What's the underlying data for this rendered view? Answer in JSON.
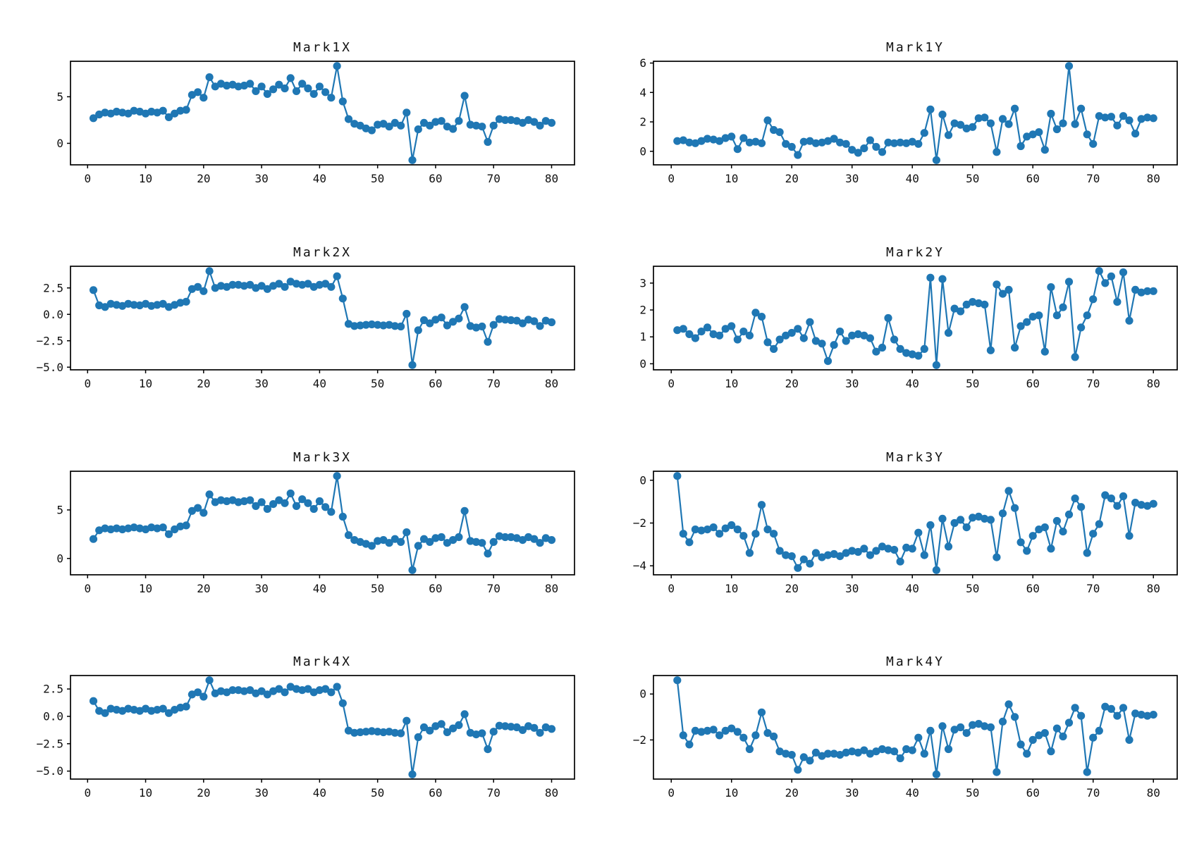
{
  "figure": {
    "background": "#ffffff"
  },
  "style": {
    "line_color": "#1f77b4",
    "marker_color": "#1f77b4",
    "axis_color": "#000000",
    "tick_label_color": "#111111"
  },
  "chart_data": [
    {
      "type": "line",
      "title": "Mark1X",
      "marker": "o",
      "grid": false,
      "legend": null,
      "x_start": 1,
      "x_step": 1,
      "xlim": [
        -2.95,
        83.95
      ],
      "ylim": [
        -2.31,
        8.81
      ],
      "xticks": [
        0,
        10,
        20,
        30,
        40,
        50,
        60,
        70,
        80
      ],
      "xtick_labels": [
        "0",
        "10",
        "20",
        "30",
        "40",
        "50",
        "60",
        "70",
        "80"
      ],
      "yticks": [
        {
          "v": 0,
          "label": "0"
        },
        {
          "v": 5,
          "label": "5"
        }
      ],
      "values": [
        2.7,
        3.1,
        3.3,
        3.2,
        3.4,
        3.3,
        3.2,
        3.5,
        3.4,
        3.2,
        3.4,
        3.3,
        3.5,
        2.8,
        3.2,
        3.5,
        3.6,
        5.2,
        5.5,
        4.9,
        7.1,
        6.1,
        6.4,
        6.2,
        6.3,
        6.1,
        6.2,
        6.4,
        5.6,
        6.1,
        5.3,
        5.8,
        6.3,
        5.9,
        7.0,
        5.6,
        6.4,
        5.9,
        5.3,
        6.1,
        5.5,
        4.9,
        8.3,
        4.5,
        2.6,
        2.1,
        1.9,
        1.6,
        1.4,
        2.0,
        2.1,
        1.8,
        2.2,
        1.9,
        3.3,
        -1.8,
        1.5,
        2.2,
        1.9,
        2.3,
        2.4,
        1.8,
        1.55,
        2.4,
        5.1,
        2.0,
        1.9,
        1.8,
        0.15,
        1.9,
        2.6,
        2.5,
        2.5,
        2.4,
        2.2,
        2.5,
        2.3,
        1.9,
        2.4,
        2.2
      ]
    },
    {
      "type": "line",
      "title": "Mark1Y",
      "marker": "o",
      "grid": false,
      "legend": null,
      "x_start": 1,
      "x_step": 1,
      "xlim": [
        -2.95,
        83.95
      ],
      "ylim": [
        -0.92,
        6.12
      ],
      "xticks": [
        0,
        10,
        20,
        30,
        40,
        50,
        60,
        70,
        80
      ],
      "xtick_labels": [
        "0",
        "10",
        "20",
        "30",
        "40",
        "50",
        "60",
        "70",
        "80"
      ],
      "yticks": [
        {
          "v": 0,
          "label": "0"
        },
        {
          "v": 2,
          "label": "2"
        },
        {
          "v": 4,
          "label": "4"
        },
        {
          "v": 6,
          "label": "6"
        }
      ],
      "values": [
        0.7,
        0.75,
        0.6,
        0.55,
        0.7,
        0.85,
        0.8,
        0.7,
        0.9,
        1.0,
        0.15,
        0.9,
        0.6,
        0.65,
        0.55,
        2.1,
        1.45,
        1.3,
        0.5,
        0.3,
        -0.25,
        0.65,
        0.7,
        0.55,
        0.6,
        0.7,
        0.85,
        0.6,
        0.5,
        0.1,
        -0.1,
        0.2,
        0.75,
        0.3,
        -0.05,
        0.6,
        0.55,
        0.6,
        0.55,
        0.65,
        0.5,
        1.25,
        2.85,
        -0.6,
        2.5,
        1.1,
        1.9,
        1.8,
        1.55,
        1.65,
        2.25,
        2.3,
        1.9,
        -0.05,
        2.2,
        1.85,
        2.9,
        0.35,
        1.0,
        1.15,
        1.3,
        0.1,
        2.55,
        1.5,
        1.9,
        5.8,
        1.85,
        2.9,
        1.15,
        0.5,
        2.4,
        2.3,
        2.35,
        1.75,
        2.4,
        2.1,
        1.2,
        2.2,
        2.3,
        2.25
      ]
    },
    {
      "type": "line",
      "title": "Mark2X",
      "marker": "o",
      "grid": false,
      "legend": null,
      "x_start": 1,
      "x_step": 1,
      "xlim": [
        -2.95,
        83.95
      ],
      "ylim": [
        -5.25,
        4.55
      ],
      "xticks": [
        0,
        10,
        20,
        30,
        40,
        50,
        60,
        70,
        80
      ],
      "xtick_labels": [
        "0",
        "10",
        "20",
        "30",
        "40",
        "50",
        "60",
        "70",
        "80"
      ],
      "yticks": [
        {
          "v": -5,
          "label": "−5.0"
        },
        {
          "v": -2.5,
          "label": "−2.5"
        },
        {
          "v": 0,
          "label": "0.0"
        },
        {
          "v": 2.5,
          "label": "2.5"
        }
      ],
      "values": [
        2.3,
        0.85,
        0.7,
        1.0,
        0.9,
        0.8,
        1.0,
        0.9,
        0.85,
        1.0,
        0.8,
        0.9,
        1.0,
        0.7,
        0.9,
        1.1,
        1.2,
        2.4,
        2.6,
        2.2,
        4.1,
        2.5,
        2.7,
        2.6,
        2.8,
        2.8,
        2.7,
        2.8,
        2.5,
        2.7,
        2.4,
        2.7,
        2.9,
        2.6,
        3.1,
        2.9,
        2.8,
        2.9,
        2.6,
        2.8,
        2.9,
        2.6,
        3.6,
        1.5,
        -0.9,
        -1.1,
        -1.05,
        -1.0,
        -0.95,
        -1.0,
        -1.05,
        -1.0,
        -1.1,
        -1.15,
        0.05,
        -4.8,
        -1.5,
        -0.55,
        -0.85,
        -0.5,
        -0.3,
        -1.05,
        -0.7,
        -0.4,
        0.7,
        -1.1,
        -1.25,
        -1.15,
        -2.6,
        -1.0,
        -0.45,
        -0.5,
        -0.55,
        -0.6,
        -0.85,
        -0.5,
        -0.65,
        -1.1,
        -0.6,
        -0.75
      ]
    },
    {
      "type": "line",
      "title": "Mark2Y",
      "marker": "o",
      "grid": false,
      "legend": null,
      "x_start": 1,
      "x_step": 1,
      "xlim": [
        -2.95,
        83.95
      ],
      "ylim": [
        -0.225,
        3.625
      ],
      "xticks": [
        0,
        10,
        20,
        30,
        40,
        50,
        60,
        70,
        80
      ],
      "xtick_labels": [
        "0",
        "10",
        "20",
        "30",
        "40",
        "50",
        "60",
        "70",
        "80"
      ],
      "yticks": [
        {
          "v": 0,
          "label": "0"
        },
        {
          "v": 1,
          "label": "1"
        },
        {
          "v": 2,
          "label": "2"
        },
        {
          "v": 3,
          "label": "3"
        }
      ],
      "values": [
        1.25,
        1.3,
        1.1,
        0.95,
        1.2,
        1.35,
        1.1,
        1.05,
        1.3,
        1.4,
        0.9,
        1.2,
        1.05,
        1.9,
        1.75,
        0.8,
        0.55,
        0.9,
        1.05,
        1.15,
        1.3,
        0.95,
        1.55,
        0.85,
        0.75,
        0.1,
        0.7,
        1.2,
        0.85,
        1.05,
        1.1,
        1.05,
        0.95,
        0.45,
        0.6,
        1.7,
        0.9,
        0.55,
        0.4,
        0.35,
        0.3,
        0.55,
        3.2,
        -0.05,
        3.15,
        1.15,
        2.05,
        1.95,
        2.2,
        2.3,
        2.25,
        2.2,
        0.5,
        2.95,
        2.6,
        2.75,
        0.6,
        1.4,
        1.55,
        1.75,
        1.8,
        0.45,
        2.85,
        1.8,
        2.1,
        3.05,
        0.25,
        1.35,
        1.8,
        2.4,
        3.45,
        3.0,
        3.25,
        2.3,
        3.4,
        1.6,
        2.75,
        2.65,
        2.7,
        2.7
      ]
    },
    {
      "type": "line",
      "title": "Mark3X",
      "marker": "o",
      "grid": false,
      "legend": null,
      "x_start": 1,
      "x_step": 1,
      "xlim": [
        -2.95,
        83.95
      ],
      "ylim": [
        -1.685,
        8.985
      ],
      "xticks": [
        0,
        10,
        20,
        30,
        40,
        50,
        60,
        70,
        80
      ],
      "xtick_labels": [
        "0",
        "10",
        "20",
        "30",
        "40",
        "50",
        "60",
        "70",
        "80"
      ],
      "yticks": [
        {
          "v": 0,
          "label": "0"
        },
        {
          "v": 5,
          "label": "5"
        }
      ],
      "values": [
        2.0,
        2.9,
        3.1,
        3.0,
        3.1,
        3.0,
        3.1,
        3.2,
        3.1,
        3.0,
        3.2,
        3.1,
        3.2,
        2.5,
        3.0,
        3.3,
        3.4,
        4.9,
        5.2,
        4.7,
        6.6,
        5.8,
        6.0,
        5.9,
        6.0,
        5.8,
        5.9,
        6.0,
        5.4,
        5.8,
        5.1,
        5.6,
        6.0,
        5.7,
        6.7,
        5.4,
        6.1,
        5.7,
        5.1,
        5.9,
        5.3,
        4.8,
        8.5,
        4.3,
        2.4,
        1.9,
        1.7,
        1.5,
        1.3,
        1.8,
        1.9,
        1.6,
        2.0,
        1.7,
        2.7,
        -1.2,
        1.3,
        2.0,
        1.7,
        2.1,
        2.2,
        1.6,
        1.9,
        2.2,
        4.9,
        1.8,
        1.7,
        1.6,
        0.5,
        1.7,
        2.3,
        2.2,
        2.2,
        2.1,
        1.9,
        2.2,
        2.0,
        1.6,
        2.1,
        1.9
      ]
    },
    {
      "type": "line",
      "title": "Mark3Y",
      "marker": "o",
      "grid": false,
      "legend": null,
      "x_start": 1,
      "x_step": 1,
      "xlim": [
        -2.95,
        83.95
      ],
      "ylim": [
        -4.42,
        0.42
      ],
      "xticks": [
        0,
        10,
        20,
        30,
        40,
        50,
        60,
        70,
        80
      ],
      "xtick_labels": [
        "0",
        "10",
        "20",
        "30",
        "40",
        "50",
        "60",
        "70",
        "80"
      ],
      "yticks": [
        {
          "v": -4,
          "label": "−4"
        },
        {
          "v": -2,
          "label": "−2"
        },
        {
          "v": 0,
          "label": "0"
        }
      ],
      "values": [
        0.2,
        -2.5,
        -2.9,
        -2.3,
        -2.35,
        -2.3,
        -2.2,
        -2.5,
        -2.25,
        -2.1,
        -2.3,
        -2.6,
        -3.4,
        -2.5,
        -1.15,
        -2.3,
        -2.5,
        -3.3,
        -3.5,
        -3.55,
        -4.1,
        -3.7,
        -3.9,
        -3.4,
        -3.6,
        -3.5,
        -3.45,
        -3.55,
        -3.4,
        -3.3,
        -3.35,
        -3.2,
        -3.5,
        -3.3,
        -3.1,
        -3.2,
        -3.25,
        -3.8,
        -3.15,
        -3.2,
        -2.45,
        -3.5,
        -2.1,
        -4.2,
        -1.8,
        -3.1,
        -2.0,
        -1.85,
        -2.2,
        -1.75,
        -1.7,
        -1.8,
        -1.85,
        -3.6,
        -1.55,
        -0.5,
        -1.3,
        -2.9,
        -3.3,
        -2.6,
        -2.3,
        -2.2,
        -3.2,
        -1.9,
        -2.4,
        -1.6,
        -0.85,
        -1.25,
        -3.4,
        -2.5,
        -2.05,
        -0.7,
        -0.85,
        -1.2,
        -0.75,
        -2.6,
        -1.05,
        -1.15,
        -1.2,
        -1.1
      ]
    },
    {
      "type": "line",
      "title": "Mark4X",
      "marker": "o",
      "grid": false,
      "legend": null,
      "x_start": 1,
      "x_step": 1,
      "xlim": [
        -2.95,
        83.95
      ],
      "ylim": [
        -5.73,
        3.73
      ],
      "xticks": [
        0,
        10,
        20,
        30,
        40,
        50,
        60,
        70,
        80
      ],
      "xtick_labels": [
        "0",
        "10",
        "20",
        "30",
        "40",
        "50",
        "60",
        "70",
        "80"
      ],
      "yticks": [
        {
          "v": -5,
          "label": "−5.0"
        },
        {
          "v": -2.5,
          "label": "−2.5"
        },
        {
          "v": 0,
          "label": "0.0"
        },
        {
          "v": 2.5,
          "label": "2.5"
        }
      ],
      "values": [
        1.4,
        0.5,
        0.3,
        0.7,
        0.6,
        0.5,
        0.7,
        0.6,
        0.5,
        0.7,
        0.5,
        0.6,
        0.7,
        0.3,
        0.6,
        0.8,
        0.9,
        2.0,
        2.2,
        1.8,
        3.3,
        2.1,
        2.3,
        2.2,
        2.4,
        2.4,
        2.3,
        2.4,
        2.1,
        2.3,
        2.0,
        2.3,
        2.5,
        2.2,
        2.7,
        2.5,
        2.4,
        2.5,
        2.2,
        2.4,
        2.5,
        2.2,
        2.7,
        1.2,
        -1.3,
        -1.5,
        -1.45,
        -1.4,
        -1.35,
        -1.4,
        -1.45,
        -1.4,
        -1.5,
        -1.55,
        -0.4,
        -5.3,
        -1.9,
        -1.0,
        -1.3,
        -0.9,
        -0.7,
        -1.45,
        -1.1,
        -0.8,
        0.2,
        -1.5,
        -1.65,
        -1.55,
        -3.0,
        -1.4,
        -0.85,
        -0.9,
        -0.95,
        -1.0,
        -1.25,
        -0.9,
        -1.05,
        -1.5,
        -1.0,
        -1.15
      ]
    },
    {
      "type": "line",
      "title": "Mark4Y",
      "marker": "o",
      "grid": false,
      "legend": null,
      "x_start": 1,
      "x_step": 1,
      "xlim": [
        -2.95,
        83.95
      ],
      "ylim": [
        -3.705,
        0.805
      ],
      "xticks": [
        0,
        10,
        20,
        30,
        40,
        50,
        60,
        70,
        80
      ],
      "xtick_labels": [
        "0",
        "10",
        "20",
        "30",
        "40",
        "50",
        "60",
        "70",
        "80"
      ],
      "yticks": [
        {
          "v": -2,
          "label": "−2"
        },
        {
          "v": 0,
          "label": "0"
        }
      ],
      "values": [
        0.6,
        -1.8,
        -2.2,
        -1.6,
        -1.65,
        -1.6,
        -1.55,
        -1.8,
        -1.6,
        -1.5,
        -1.65,
        -1.9,
        -2.4,
        -1.8,
        -0.8,
        -1.7,
        -1.85,
        -2.5,
        -2.6,
        -2.65,
        -3.3,
        -2.75,
        -2.9,
        -2.55,
        -2.7,
        -2.6,
        -2.6,
        -2.65,
        -2.55,
        -2.5,
        -2.55,
        -2.45,
        -2.6,
        -2.5,
        -2.4,
        -2.45,
        -2.5,
        -2.8,
        -2.4,
        -2.45,
        -1.9,
        -2.6,
        -1.6,
        -3.5,
        -1.4,
        -2.4,
        -1.55,
        -1.45,
        -1.7,
        -1.35,
        -1.3,
        -1.4,
        -1.45,
        -3.4,
        -1.2,
        -0.45,
        -1.0,
        -2.2,
        -2.6,
        -2.0,
        -1.8,
        -1.7,
        -2.5,
        -1.5,
        -1.85,
        -1.25,
        -0.6,
        -0.95,
        -3.4,
        -1.9,
        -1.6,
        -0.55,
        -0.65,
        -0.95,
        -0.6,
        -2.0,
        -0.85,
        -0.9,
        -0.95,
        -0.9
      ]
    }
  ]
}
